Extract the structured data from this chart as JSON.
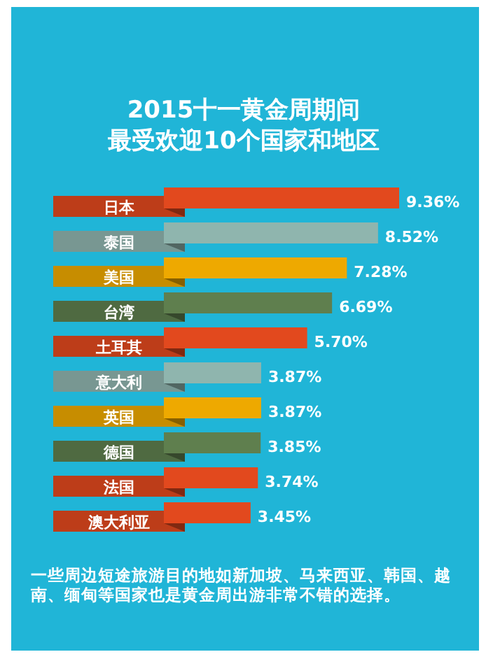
{
  "chart_data": {
    "type": "bar",
    "orientation": "horizontal",
    "title": "2015十一黄金周期间最受欢迎10个国家和地区",
    "categories": [
      "日本",
      "泰国",
      "美国",
      "台湾",
      "土耳其",
      "意大利",
      "英国",
      "德国",
      "法国",
      "澳大利亚"
    ],
    "values": [
      9.36,
      8.52,
      7.28,
      6.69,
      5.7,
      3.87,
      3.87,
      3.85,
      3.74,
      3.45
    ],
    "value_labels": [
      "9.36%",
      "8.52%",
      "7.28%",
      "6.69%",
      "5.70%",
      "3.87%",
      "3.87%",
      "3.85%",
      "3.74%",
      "3.45%"
    ],
    "colors": [
      "#e2491e",
      "#8fb5ae",
      "#eea900",
      "#5f7f4e",
      "#e2491e",
      "#8fb5ae",
      "#eea900",
      "#5f7f4e",
      "#e2491e",
      "#e2491e"
    ],
    "annotations": [
      "一些周边短途旅游目的地如新加坡、马来西亚、韩国、越南、缅甸等国家也是黄金周出游非常不错的选择。"
    ]
  }
}
